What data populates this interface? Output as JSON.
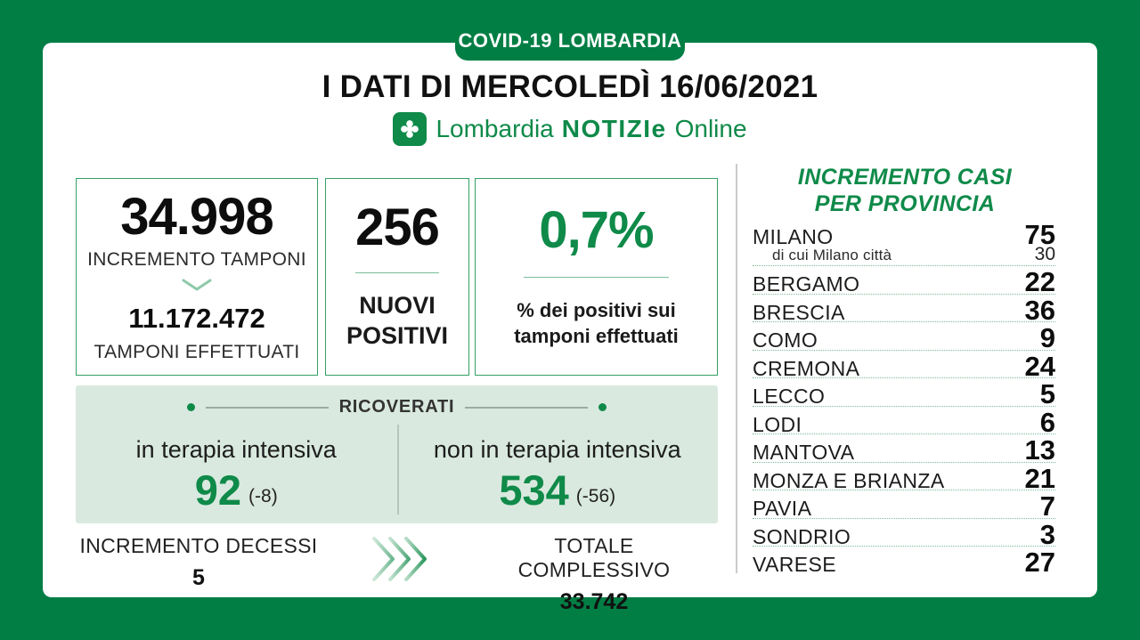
{
  "colors": {
    "frame_green": "#007e44",
    "text_green": "#0f8a49",
    "band_background": "#d9e9df",
    "card_border": "#35a065",
    "divider_gray": "#cbcbcb",
    "dark_text": "#111111"
  },
  "header": {
    "banner": "COVID-19 LOMBARDIA",
    "title": "I DATI DI MERCOLEDÌ 16/06/2021",
    "logo": {
      "icon": "rosa-camuna-icon",
      "region": "Lombardia",
      "brand": "NOTIZIe",
      "suffix": "Online"
    }
  },
  "cards": {
    "tamponi": {
      "value": "34.998",
      "label": "INCREMENTO TAMPONI",
      "total_value": "11.172.472",
      "total_label": "TAMPONI EFFETTUATI"
    },
    "nuovi_positivi": {
      "value": "256",
      "label_line1": "NUOVI",
      "label_line2": "POSITIVI"
    },
    "positivita": {
      "value": "0,7%",
      "label_line1": "% dei positivi sui",
      "label_line2": "tamponi effettuati"
    }
  },
  "ricoverati": {
    "title": "RICOVERATI",
    "terapia_intensiva": {
      "label": "in terapia intensiva",
      "value": "92",
      "delta": "(-8)"
    },
    "non_terapia_intensiva": {
      "label": "non in terapia intensiva",
      "value": "534",
      "delta": "(-56)"
    }
  },
  "decessi": {
    "increment_label": "INCREMENTO DECESSI",
    "increment_value": "5",
    "total_label": "TOTALE COMPLESSIVO",
    "total_value": "33.742"
  },
  "province_panel": {
    "heading_line1": "INCREMENTO CASI",
    "heading_line2": "PER PROVINCIA",
    "rows": [
      {
        "name": "MILANO",
        "value": "75",
        "sub_name": "di cui Milano città",
        "sub_value": "30"
      },
      {
        "name": "BERGAMO",
        "value": "22"
      },
      {
        "name": "BRESCIA",
        "value": "36"
      },
      {
        "name": "COMO",
        "value": "9"
      },
      {
        "name": "CREMONA",
        "value": "24"
      },
      {
        "name": "LECCO",
        "value": "5"
      },
      {
        "name": "LODI",
        "value": "6"
      },
      {
        "name": "MANTOVA",
        "value": "13"
      },
      {
        "name": "MONZA E BRIANZA",
        "value": "21"
      },
      {
        "name": "PAVIA",
        "value": "7"
      },
      {
        "name": "SONDRIO",
        "value": "3"
      },
      {
        "name": "VARESE",
        "value": "27"
      }
    ]
  },
  "chart_data": {
    "type": "table",
    "title": "I DATI DI MERCOLEDÌ 16/06/2021",
    "subtitle": "COVID-19 LOMBARDIA",
    "key_stats": {
      "incremento_tamponi": 34998,
      "tamponi_effettuati": 11172472,
      "nuovi_positivi": 256,
      "percentuale_positivi": 0.7,
      "ricoverati_terapia_intensiva": 92,
      "ricoverati_terapia_intensiva_delta": -8,
      "ricoverati_non_terapia_intensiva": 534,
      "ricoverati_non_terapia_intensiva_delta": -56,
      "incremento_decessi": 5,
      "totale_complessivo_decessi": 33742,
      "milano_citta": 30
    },
    "categories": [
      "MILANO",
      "BERGAMO",
      "BRESCIA",
      "COMO",
      "CREMONA",
      "LECCO",
      "LODI",
      "MANTOVA",
      "MONZA E BRIANZA",
      "PAVIA",
      "SONDRIO",
      "VARESE"
    ],
    "values": [
      75,
      22,
      36,
      9,
      24,
      5,
      6,
      13,
      21,
      7,
      3,
      27
    ],
    "series_label": "Incremento casi per provincia"
  }
}
